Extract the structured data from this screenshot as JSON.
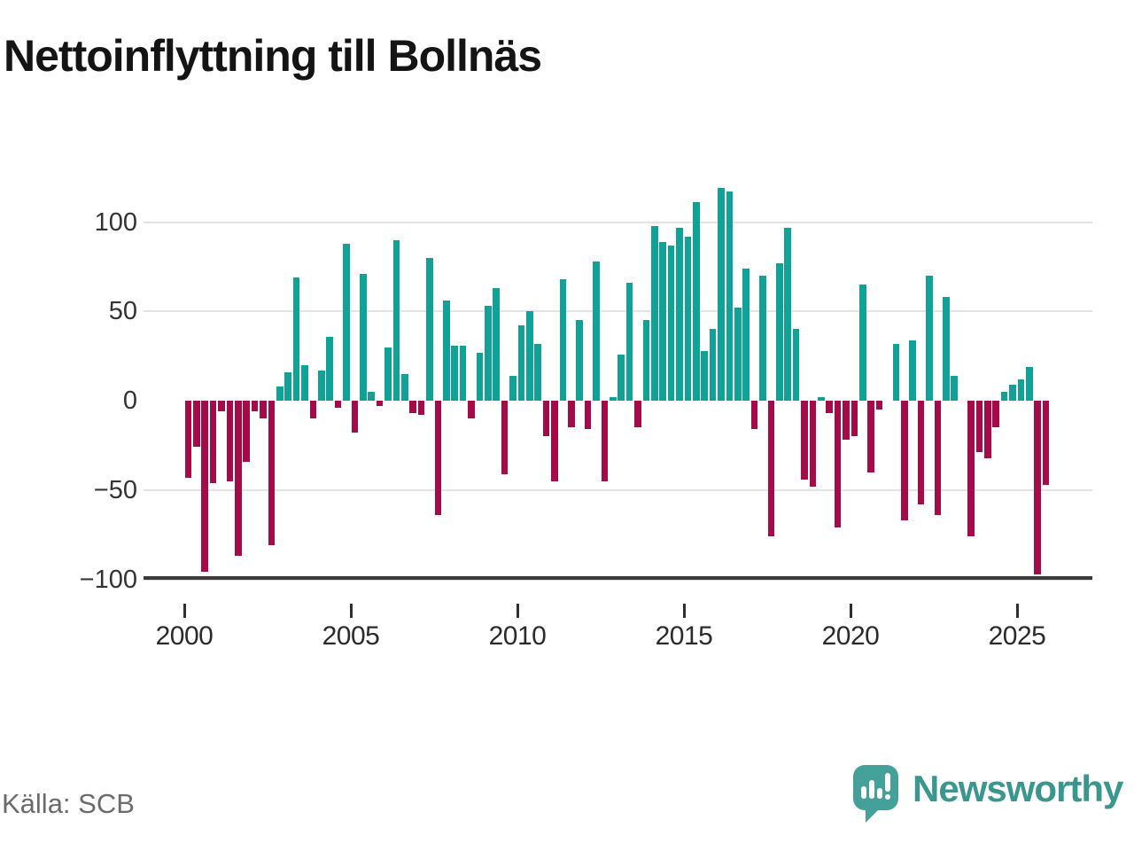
{
  "title": "Nettoinflyttning till Bollnäs",
  "source": "Källa: SCB",
  "brand": {
    "name": "Newsworthy"
  },
  "colors": {
    "positive": "#10a296",
    "negative": "#a30b49",
    "zero_line": "#3b3b3b",
    "gridline": "#e3e3e3",
    "axis_text": "#333333",
    "title_text": "#141414",
    "source_text": "#6b6b6b",
    "brand_text": "#3a978f",
    "brand_icon": "#44a19a"
  },
  "chart_data": {
    "type": "bar",
    "title": "Nettoinflyttning till Bollnäs",
    "period": "quarterly",
    "start_year": 2000,
    "xlabel": "",
    "ylabel": "",
    "ylim": [
      -110,
      125
    ],
    "grid": "horizontal",
    "legend": "none",
    "y_ticks": [
      100,
      50,
      0,
      -50,
      -100
    ],
    "y_tick_labels": [
      "100",
      "50",
      "0",
      "−50",
      "−100"
    ],
    "x_tick_years": [
      2000,
      2005,
      2010,
      2015,
      2020,
      2025
    ],
    "x_tick_labels": [
      "2000",
      "2005",
      "2010",
      "2015",
      "2020",
      "2025"
    ],
    "series": [
      {
        "name": "Nettoinflyttning",
        "values": [
          -43,
          -26,
          -96,
          -46,
          -6,
          -45,
          -87,
          -34,
          -6,
          -10,
          -81,
          8,
          16,
          69,
          20,
          -10,
          17,
          36,
          -4,
          88,
          -18,
          71,
          5,
          -3,
          30,
          90,
          15,
          -7,
          -8,
          80,
          -64,
          56,
          31,
          31,
          -10,
          27,
          53,
          63,
          -41,
          14,
          42,
          50,
          32,
          -20,
          -45,
          68,
          -15,
          45,
          -16,
          78,
          -45,
          2,
          26,
          66,
          -15,
          45,
          98,
          89,
          87,
          97,
          92,
          111,
          28,
          40,
          119,
          117,
          52,
          74,
          -16,
          70,
          -76,
          77,
          97,
          40,
          -44,
          -48,
          2,
          -7,
          -71,
          -22,
          -20,
          65,
          -40,
          -5,
          0,
          32,
          -67,
          34,
          -58,
          70,
          -64,
          58,
          14,
          0,
          -76,
          -29,
          -32,
          -15,
          5,
          9,
          12,
          19,
          -97,
          -47
        ]
      }
    ]
  }
}
